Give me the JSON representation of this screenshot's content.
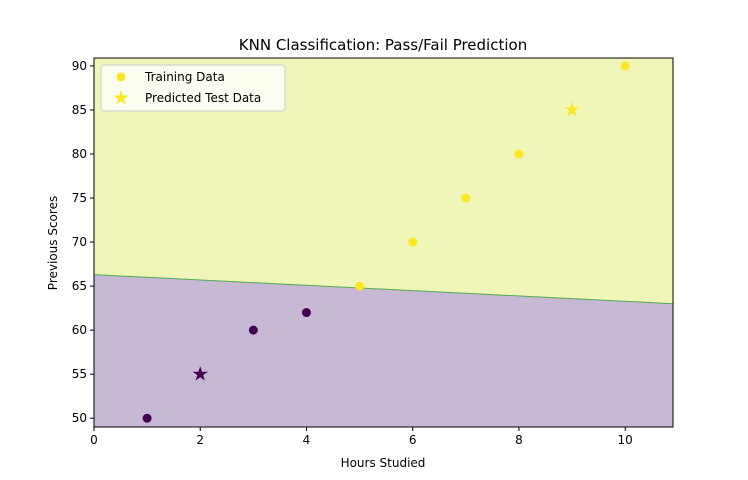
{
  "chart_data": {
    "type": "scatter",
    "title": "KNN Classification: Pass/Fail Prediction",
    "xlabel": "Hours Studied",
    "ylabel": "Previous Scores",
    "xlim": [
      0,
      10.9
    ],
    "ylim": [
      49,
      90.9
    ],
    "xticks": [
      0,
      2,
      4,
      6,
      8,
      10
    ],
    "yticks": [
      50,
      55,
      60,
      65,
      70,
      75,
      80,
      85,
      90
    ],
    "grid": false,
    "legend_position": "upper-left",
    "colors": {
      "fail": "#440154",
      "pass": "#fde725",
      "fail_region": "#c7b9d3",
      "pass_region": "#f0f6b8",
      "boundary": "#4faa55"
    },
    "decision_boundary": {
      "x": [
        0,
        10.9
      ],
      "y": [
        66.3,
        63.0
      ]
    },
    "series": [
      {
        "name": "Training Data",
        "marker": "circle",
        "points": [
          {
            "x": 1,
            "y": 50,
            "class": "fail"
          },
          {
            "x": 3,
            "y": 60,
            "class": "fail"
          },
          {
            "x": 4,
            "y": 62,
            "class": "fail"
          },
          {
            "x": 5,
            "y": 65,
            "class": "pass"
          },
          {
            "x": 6,
            "y": 70,
            "class": "pass"
          },
          {
            "x": 7,
            "y": 75,
            "class": "pass"
          },
          {
            "x": 8,
            "y": 80,
            "class": "pass"
          },
          {
            "x": 10,
            "y": 90,
            "class": "pass"
          }
        ]
      },
      {
        "name": "Predicted Test Data",
        "marker": "star",
        "points": [
          {
            "x": 2,
            "y": 55,
            "class": "fail"
          },
          {
            "x": 9,
            "y": 85,
            "class": "pass"
          }
        ]
      }
    ]
  }
}
